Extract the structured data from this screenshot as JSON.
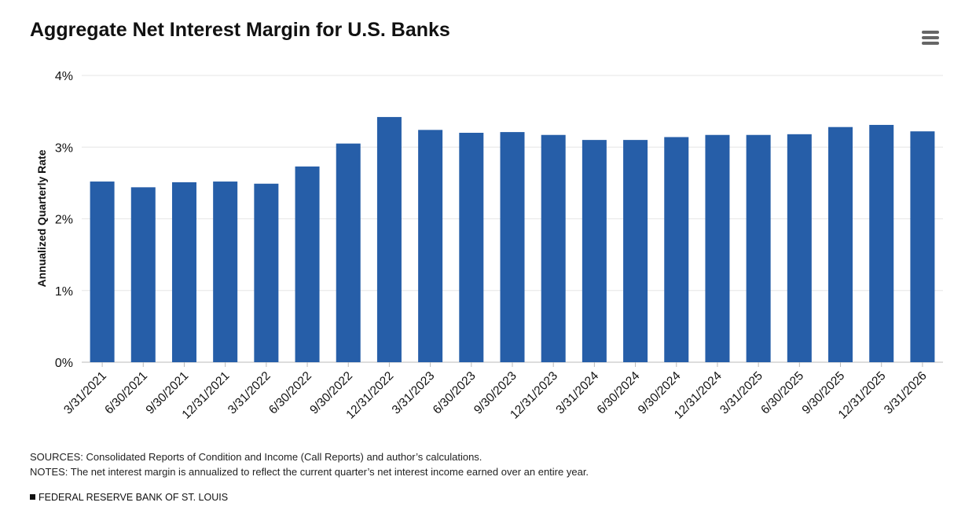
{
  "chart_data": {
    "type": "bar",
    "title": "Aggregate Net Interest Margin for U.S. Banks",
    "ylabel": "Annualized Quarterly Rate",
    "xlabel": "",
    "ylim": [
      0,
      4
    ],
    "yticks": [
      "0%",
      "1%",
      "2%",
      "3%",
      "4%"
    ],
    "ytick_values": [
      0,
      1,
      2,
      3,
      4
    ],
    "grid": true,
    "bar_color": "#265EA8",
    "categories": [
      "3/31/2021",
      "6/30/2021",
      "9/30/2021",
      "12/31/2021",
      "3/31/2022",
      "6/30/2022",
      "9/30/2022",
      "12/31/2022",
      "3/31/2023",
      "6/30/2023",
      "9/30/2023",
      "12/31/2023",
      "3/31/2024",
      "6/30/2024",
      "9/30/2024",
      "12/31/2024",
      "3/31/2025",
      "6/30/2025",
      "9/30/2025",
      "12/31/2025",
      "3/31/2026"
    ],
    "values": [
      2.52,
      2.44,
      2.51,
      2.52,
      2.49,
      2.73,
      3.05,
      3.42,
      3.24,
      3.2,
      3.21,
      3.17,
      3.1,
      3.1,
      3.14,
      3.17,
      3.17,
      3.18,
      3.28,
      3.31,
      3.22
    ]
  },
  "sources": "SOURCES: Consolidated Reports of Condition and Income (Call Reports) and author’s calculations.",
  "notes": "NOTES: The net interest margin is annualized to reflect the current quarter’s net interest income earned over an entire year.",
  "brand": "FEDERAL RESERVE BANK OF ST. LOUIS",
  "menu_icon": "hamburger-menu-icon"
}
